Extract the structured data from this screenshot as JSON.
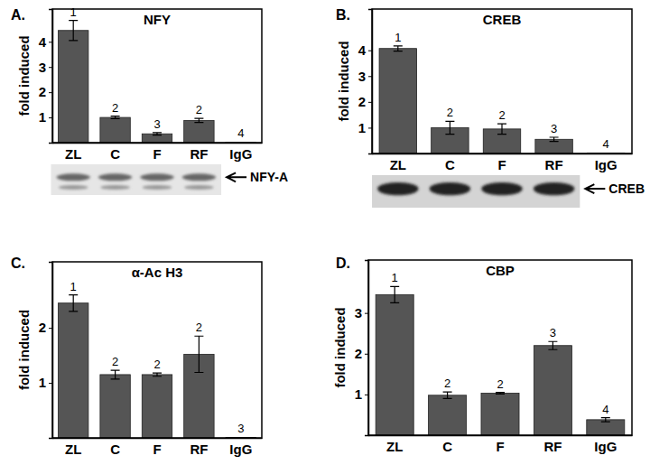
{
  "chart_data": [
    {
      "type": "bar",
      "panel_label": "A.",
      "title": "NFY",
      "y_label": "fold induced",
      "categories": [
        "ZL",
        "C",
        "F",
        "RF",
        "IgG"
      ],
      "values": [
        4.45,
        1.0,
        0.35,
        0.88,
        0.02
      ],
      "errors": [
        0.4,
        0.05,
        0.05,
        0.08,
        null
      ],
      "group_labels": [
        "1",
        "2",
        "3",
        "2",
        "4"
      ],
      "blot_label": "NFY-A",
      "color": "#555555",
      "ylim": [
        0,
        5.3
      ],
      "yticks": [
        1,
        2,
        3,
        4
      ]
    },
    {
      "type": "bar",
      "panel_label": "B.",
      "title": "CREB",
      "y_label": "fold induced",
      "categories": [
        "ZL",
        "C",
        "F",
        "RF",
        "IgG"
      ],
      "values": [
        4.07,
        1.0,
        0.95,
        0.55,
        0.02
      ],
      "errors": [
        0.1,
        0.25,
        0.2,
        0.08,
        null
      ],
      "group_labels": [
        "1",
        "2",
        "2",
        "3",
        "4"
      ],
      "blot_label": "CREB",
      "color": "#555555",
      "ylim": [
        0,
        5.6
      ],
      "yticks": [
        1,
        2,
        3,
        4
      ]
    },
    {
      "type": "bar",
      "panel_label": "C.",
      "title": "α-Ac H3",
      "y_label": "fold induced",
      "categories": [
        "ZL",
        "C",
        "F",
        "RF",
        "IgG"
      ],
      "values": [
        2.45,
        1.15,
        1.15,
        1.52,
        0.01
      ],
      "errors": [
        0.15,
        0.08,
        0.03,
        0.33,
        null
      ],
      "group_labels": [
        "1",
        "2",
        "2",
        "2",
        "3"
      ],
      "color": "#555555",
      "ylim": [
        0,
        3.2
      ],
      "yticks": [
        1,
        2
      ]
    },
    {
      "type": "bar",
      "panel_label": "D.",
      "title": "CBP",
      "y_label": "fold induced",
      "categories": [
        "ZL",
        "C",
        "F",
        "RF",
        "IgG"
      ],
      "values": [
        3.45,
        0.98,
        1.03,
        2.2,
        0.38
      ],
      "errors": [
        0.2,
        0.08,
        0.02,
        0.1,
        0.05
      ],
      "group_labels": [
        "1",
        "2",
        "2",
        "3",
        "4"
      ],
      "color": "#555555",
      "ylim": [
        0,
        4.3
      ],
      "yticks": [
        1,
        2,
        3
      ]
    }
  ]
}
